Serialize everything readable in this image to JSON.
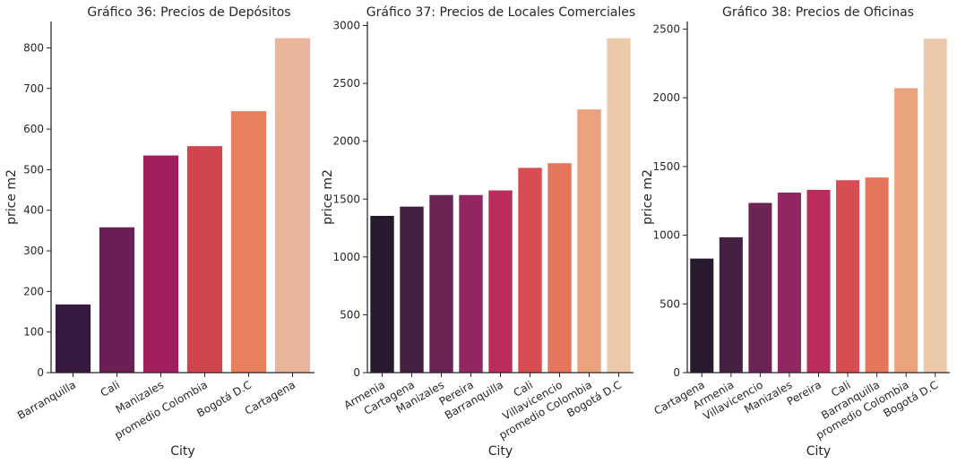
{
  "chart_data": [
    {
      "type": "bar",
      "title": "Gráfico 36: Precios de Depósitos",
      "xlabel": "City",
      "ylabel": "price m2",
      "categories": [
        "Barranquilla",
        "Cali",
        "Manizales",
        "promedio Colombia",
        "Bogotá D.C",
        "Cartagena"
      ],
      "values": [
        168,
        358,
        535,
        558,
        644,
        824
      ],
      "ylim": [
        0,
        865
      ],
      "yticks": [
        0,
        100,
        200,
        300,
        400,
        500,
        600,
        700,
        800
      ],
      "colors": [
        "#35193e",
        "#6b1e54",
        "#a01f5d",
        "#d0444e",
        "#e8805e",
        "#e9b59c"
      ]
    },
    {
      "type": "bar",
      "title": "Gráfico 37: Precios de Locales Comerciales",
      "xlabel": "City",
      "ylabel": "price m2",
      "categories": [
        "Armenia",
        "Cartagena",
        "Manizales",
        "Pereira",
        "Barranquilla",
        "Cali",
        "Villavicencio",
        "promedio Colombia",
        "Bogotá D.C"
      ],
      "values": [
        1355,
        1435,
        1535,
        1535,
        1575,
        1770,
        1810,
        2275,
        2890
      ],
      "ylim": [
        0,
        3035
      ],
      "yticks": [
        0,
        500,
        1000,
        1500,
        2000,
        2500,
        3000
      ],
      "colors": [
        "#28192f",
        "#442141",
        "#6a2555",
        "#902760",
        "#bb2c5c",
        "#d84d52",
        "#e5765b",
        "#eaa27c",
        "#edc9ac"
      ]
    },
    {
      "type": "bar",
      "title": "Gráfico 38: Precios de Oficinas",
      "xlabel": "City",
      "ylabel": "price m2",
      "categories": [
        "Cartagena",
        "Armenia",
        "Villavicencio",
        "Manizales",
        "Pereira",
        "Cali",
        "Barranquilla",
        "promedio Colombia",
        "Bogotá D.C"
      ],
      "values": [
        830,
        985,
        1235,
        1310,
        1330,
        1400,
        1420,
        2070,
        2430
      ],
      "ylim": [
        0,
        2555
      ],
      "yticks": [
        0,
        500,
        1000,
        1500,
        2000,
        2500
      ],
      "colors": [
        "#28192f",
        "#442141",
        "#6a2555",
        "#902760",
        "#bb2c5c",
        "#d84d52",
        "#e5765b",
        "#eaa27c",
        "#edc9ac"
      ]
    }
  ]
}
